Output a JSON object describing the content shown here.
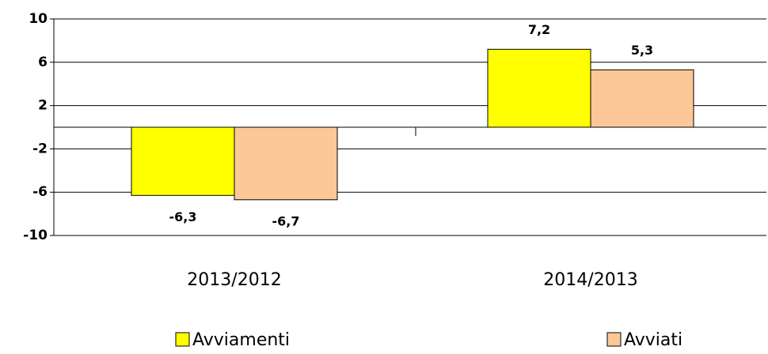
{
  "chart_data": {
    "type": "bar",
    "categories": [
      "2013/2012",
      "2014/2013"
    ],
    "series": [
      {
        "name": "Avviamenti",
        "color": "#ffff00",
        "values": [
          -6.3,
          7.2
        ],
        "value_labels": [
          "-6,3",
          "7,2"
        ]
      },
      {
        "name": "Avviati",
        "color": "#fcc897",
        "values": [
          -6.7,
          5.3
        ],
        "value_labels": [
          "-6,7",
          "5,3"
        ]
      }
    ],
    "ylim": [
      -10,
      10
    ],
    "yticks": [
      -10,
      -6,
      -2,
      2,
      6,
      10
    ],
    "grid": true
  }
}
